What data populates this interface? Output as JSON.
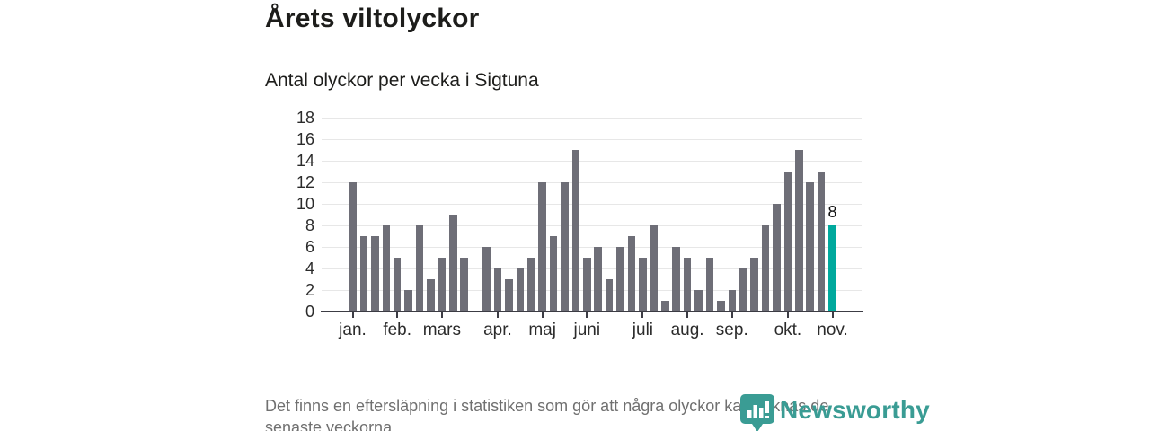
{
  "title": "Årets viltolyckor",
  "subtitle": "Antal olyckor per vecka i Sigtuna",
  "footer": {
    "line1": "Det finns en eftersläpning i statistiken som gör att några olyckor kan saknas de",
    "line2": "senaste veckorna."
  },
  "logo": {
    "name": "Newsworthy"
  },
  "colors": {
    "bar": "#6e6e77",
    "highlight": "#00a99d",
    "grid": "#e7e7e7",
    "axis": "#3c3c44",
    "text": "#1d1d1b",
    "muted": "#707070",
    "logo": "#3a9c94"
  },
  "chart_data": {
    "type": "bar",
    "title": "Årets viltolyckor",
    "subtitle": "Antal olyckor per vecka i Sigtuna",
    "x_unit": "vecka",
    "values": [
      12,
      7,
      7,
      8,
      5,
      2,
      8,
      3,
      5,
      9,
      5,
      0,
      6,
      4,
      3,
      4,
      5,
      12,
      7,
      12,
      15,
      5,
      6,
      3,
      6,
      7,
      5,
      8,
      1,
      6,
      5,
      2,
      5,
      1,
      2,
      4,
      5,
      8,
      10,
      13,
      15,
      12,
      13,
      8
    ],
    "highlight_index": 43,
    "highlight_label": "8",
    "x_tick_labels": [
      "jan.",
      "feb.",
      "mars",
      "apr.",
      "maj",
      "juni",
      "juli",
      "aug.",
      "sep.",
      "okt.",
      "nov."
    ],
    "x_tick_bar_indices": [
      0,
      4,
      8,
      13,
      17,
      21,
      26,
      30,
      34,
      39,
      43
    ],
    "y_ticks": [
      0,
      2,
      4,
      6,
      8,
      10,
      12,
      14,
      16,
      18
    ],
    "ylim": [
      0,
      18
    ],
    "grid": "horizontal",
    "legend": "none"
  }
}
